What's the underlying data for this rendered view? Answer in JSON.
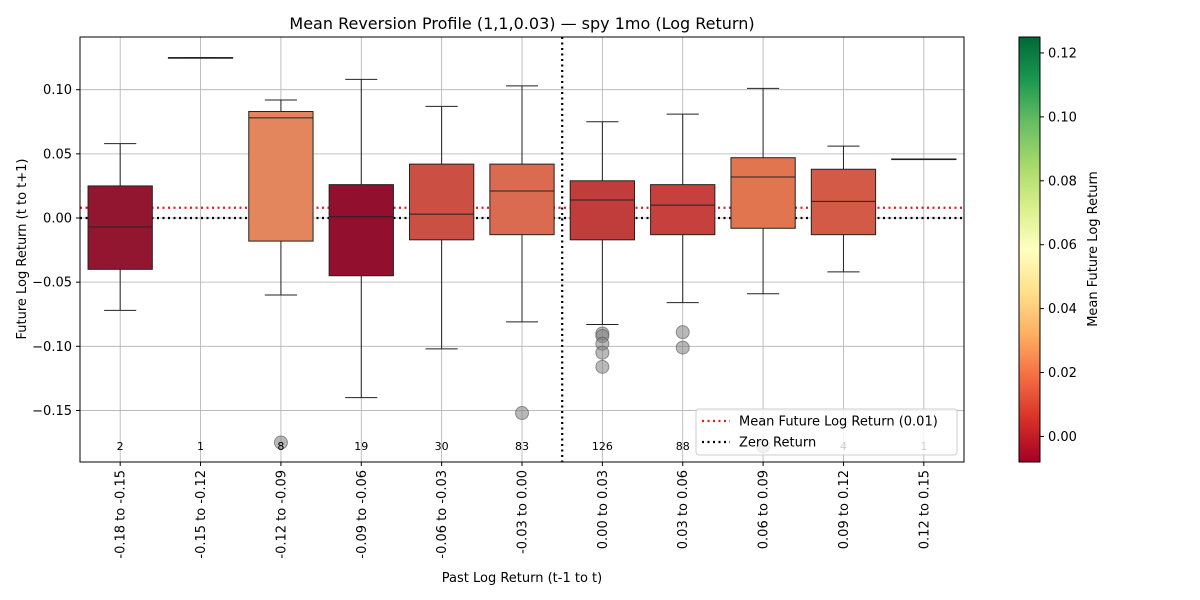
{
  "chart_data": {
    "type": "box",
    "title": "Mean Reversion Profile (1,1,0.03) — spy 1mo (Log Return)",
    "xlabel": "Past Log Return (t-1 to t)",
    "ylabel": "Future Log Return (t to t+1)",
    "ylim": [
      -0.19,
      0.14
    ],
    "yticks": [
      0.1,
      0.05,
      0.0,
      -0.05,
      -0.1,
      -0.15
    ],
    "ytick_labels": [
      "0.10",
      "0.05",
      "0.00",
      "−0.05",
      "−0.10",
      "−0.15"
    ],
    "grid": true,
    "categories": [
      "-0.18 to -0.15",
      "-0.15 to -0.12",
      "-0.12 to -0.09",
      "-0.09 to -0.06",
      "-0.06 to -0.03",
      "-0.03 to 0.00",
      "0.00 to 0.03",
      "0.03 to 0.06",
      "0.06 to 0.09",
      "0.09 to 0.12",
      "0.12 to 0.15"
    ],
    "boxes": [
      {
        "whisker_low": -0.072,
        "q1": -0.04,
        "median": -0.007,
        "q3": 0.025,
        "whisker_high": 0.058,
        "color": "#931631",
        "outliers": []
      },
      {
        "whisker_low": 0.125,
        "q1": 0.125,
        "median": 0.125,
        "q3": 0.125,
        "whisker_high": 0.125,
        "color": "#006837",
        "outliers": []
      },
      {
        "whisker_low": -0.06,
        "q1": -0.018,
        "median": 0.078,
        "q3": 0.083,
        "whisker_high": 0.092,
        "color": "#e3865e",
        "outliers": [
          -0.175
        ]
      },
      {
        "whisker_low": -0.14,
        "q1": -0.045,
        "median": 0.001,
        "q3": 0.026,
        "whisker_high": 0.108,
        "color": "#920f2e",
        "outliers": []
      },
      {
        "whisker_low": -0.102,
        "q1": -0.017,
        "median": 0.003,
        "q3": 0.042,
        "whisker_high": 0.087,
        "color": "#cc4f43",
        "outliers": []
      },
      {
        "whisker_low": -0.081,
        "q1": -0.013,
        "median": 0.021,
        "q3": 0.042,
        "whisker_high": 0.103,
        "color": "#da6a50",
        "outliers": [
          -0.152
        ]
      },
      {
        "whisker_low": -0.083,
        "q1": -0.017,
        "median": 0.014,
        "q3": 0.029,
        "whisker_high": 0.075,
        "color": "#c13d3c",
        "outliers": [
          -0.09,
          -0.092,
          -0.098,
          -0.105,
          -0.116
        ]
      },
      {
        "whisker_low": -0.066,
        "q1": -0.013,
        "median": 0.01,
        "q3": 0.026,
        "whisker_high": 0.081,
        "color": "#c6413d",
        "outliers": [
          -0.089,
          -0.101
        ]
      },
      {
        "whisker_low": -0.059,
        "q1": -0.008,
        "median": 0.032,
        "q3": 0.047,
        "whisker_high": 0.101,
        "color": "#e0754f",
        "outliers": [
          -0.178
        ]
      },
      {
        "whisker_low": -0.042,
        "q1": -0.013,
        "median": 0.013,
        "q3": 0.038,
        "whisker_high": 0.056,
        "color": "#d25a47",
        "outliers": []
      },
      {
        "whisker_low": 0.046,
        "q1": 0.046,
        "median": 0.046,
        "q3": 0.046,
        "whisker_high": 0.046,
        "color": "#fff0a8",
        "outliers": []
      }
    ],
    "counts": [
      "2",
      "1",
      "8",
      "19",
      "30",
      "83",
      "126",
      "88",
      "",
      "4",
      "1"
    ],
    "reference_lines": [
      {
        "name": "Mean Future Log Return (0.01)",
        "y": 0.008,
        "orientation": "horizontal",
        "color": "#e31a1c",
        "style": "dotted"
      },
      {
        "name": "Zero Return",
        "y": 0.0,
        "orientation": "horizontal",
        "color": "#000000",
        "style": "dotted"
      },
      {
        "x": 0.0,
        "orientation": "vertical",
        "color": "#000000",
        "style": "dotted"
      }
    ],
    "legend": {
      "placement": "lower right",
      "entries": [
        "Mean Future Log Return (0.01)",
        "Zero Return"
      ]
    },
    "colorbar": {
      "label": "Mean Future Log Return",
      "range": [
        -0.008,
        0.125
      ],
      "ticks": [
        0.12,
        0.1,
        0.08,
        0.06,
        0.04,
        0.02,
        0.0
      ],
      "tick_labels": [
        "0.12",
        "0.10",
        "0.08",
        "0.06",
        "0.04",
        "0.02",
        "0.00"
      ],
      "colormap": "RdYlGn",
      "stops": [
        "#a50026",
        "#d73027",
        "#f46d43",
        "#fdae61",
        "#fee08b",
        "#ffffbf",
        "#d9ef8b",
        "#a6d96a",
        "#66bd63",
        "#1a9850",
        "#006837"
      ]
    }
  }
}
